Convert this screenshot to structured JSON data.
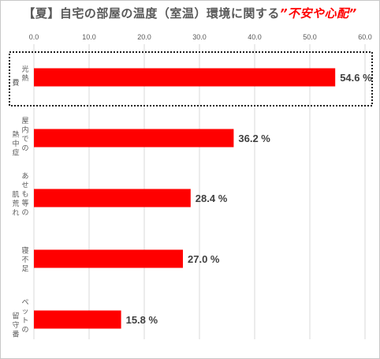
{
  "chart_data": {
    "type": "bar",
    "orientation": "horizontal",
    "title_parts": {
      "main": "【夏】自宅の部屋の温度（室温）環境に関する",
      "emphasis": "”不安や心配”"
    },
    "categories": [
      {
        "name": "光熱費",
        "columns": [
          "光熱",
          "費"
        ]
      },
      {
        "name": "屋内での熱中症",
        "columns": [
          "屋内での",
          "熱中症"
        ]
      },
      {
        "name": "あせも等の肌荒れ",
        "columns": [
          "あせも等の",
          "肌荒れ"
        ]
      },
      {
        "name": "寝不足",
        "columns": [
          "寝不足"
        ]
      },
      {
        "name": "ペットの留守番",
        "columns": [
          "ペットの",
          "留守番"
        ]
      }
    ],
    "values": [
      54.6,
      36.2,
      28.4,
      27.0,
      15.8
    ],
    "value_labels": [
      "54.6 %",
      "36.2 %",
      "28.4 %",
      "27.0 %",
      "15.8 %"
    ],
    "xlim": [
      0,
      60
    ],
    "ticks": [
      "0.0",
      "10.0",
      "20.0",
      "30.0",
      "40.0",
      "50.0",
      "60.0"
    ],
    "tick_values": [
      0,
      10,
      20,
      30,
      40,
      50,
      60
    ],
    "axis_position": "top",
    "grid": true,
    "highlighted_category": "光熱費",
    "bar_color": "#ff0000",
    "grid_color": "#d9d9d9",
    "highlight_border_color": "#1f1f1f"
  }
}
